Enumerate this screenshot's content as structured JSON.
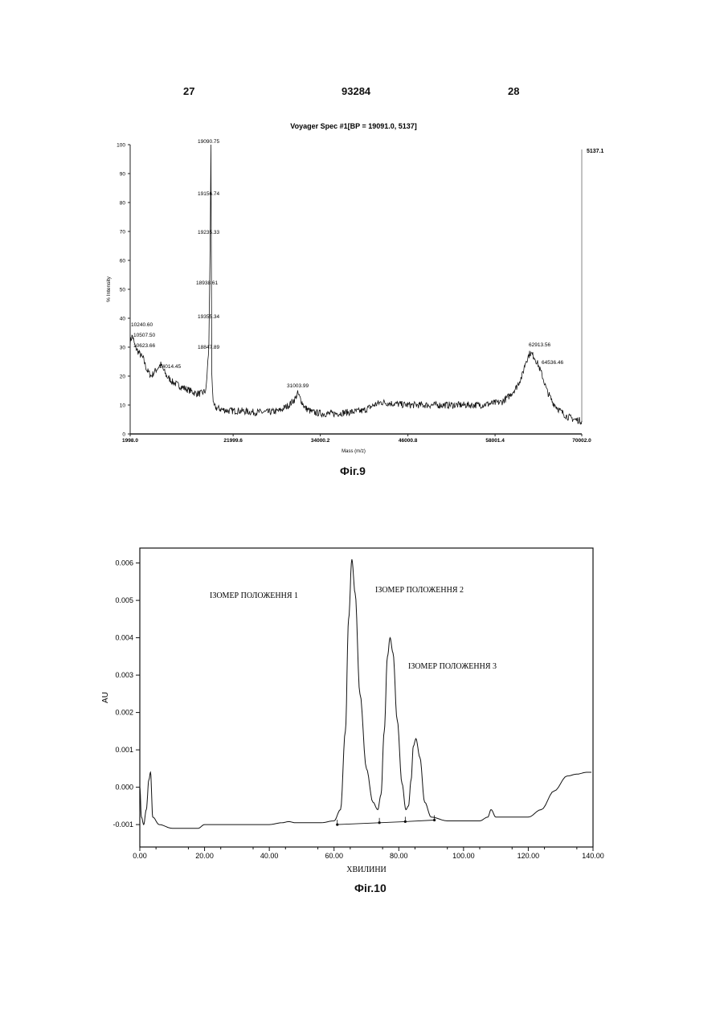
{
  "header": {
    "left_page": "27",
    "patent_number": "93284",
    "right_page": "28"
  },
  "figures": [
    {
      "caption": "Фіг.9"
    },
    {
      "caption": "Фіг.10"
    }
  ],
  "chart_data": [
    {
      "type": "line",
      "title": "Voyager Spec #1[BP = 19091.0, 5137]",
      "xlabel": "Mass (m/z)",
      "ylabel": "% Intensity",
      "x_ticks": [
        "1998.0",
        "21999.6",
        "34000.2",
        "46000.8",
        "58001.4",
        "70002.0"
      ],
      "y_ticks": [
        "0",
        "10",
        "20",
        "30",
        "40",
        "50",
        "60",
        "70",
        "80",
        "90",
        "100"
      ],
      "xlim": [
        7999.0,
        70002.0
      ],
      "ylim": [
        0,
        100
      ],
      "right_axis_label": "5137.1",
      "grid": false,
      "series": [
        {
          "x": [
            7999,
            8300,
            8700,
            9200,
            9800,
            10300,
            10900,
            11500,
            12200,
            13000,
            13800,
            14500,
            15300,
            16200,
            17000,
            17800,
            18400,
            18800,
            19000,
            19090,
            19200,
            19400,
            19800,
            20500,
            21500,
            23000,
            25000,
            27000,
            28500,
            29800,
            30600,
            31000,
            31400,
            32000,
            33000,
            34500,
            36000,
            38000,
            40000,
            41500,
            42500,
            44000,
            46000,
            48000,
            50000,
            52000,
            54000,
            56000,
            57500,
            59000,
            60000,
            61000,
            61800,
            62300,
            62900,
            63400,
            64000,
            64600,
            65200,
            66000,
            67000,
            68000,
            69000,
            70002
          ],
          "values": [
            32,
            34,
            30,
            28,
            26,
            22,
            20,
            22,
            24,
            20,
            18,
            17,
            16,
            15,
            14,
            14,
            15,
            30,
            70,
            100,
            22,
            10,
            9,
            8.5,
            8,
            8,
            7.5,
            7.5,
            8,
            10,
            12,
            14,
            12,
            9,
            7.5,
            7,
            7,
            7.5,
            8,
            10,
            11,
            10.5,
            10,
            10,
            10,
            10,
            10,
            10,
            10.5,
            11,
            13,
            16,
            20,
            25,
            28,
            27,
            24,
            20,
            15,
            11,
            8,
            6,
            5,
            4.5
          ]
        }
      ],
      "peak_labels": [
        {
          "x": 19090.75,
          "y": 100,
          "text": "19090.75"
        },
        {
          "x": 19156.74,
          "y": 87,
          "text": "19156.74"
        },
        {
          "x": 19235.33,
          "y": 70,
          "text": "19235.33"
        },
        {
          "x": 18938.61,
          "y": 52,
          "text": "18938.61"
        },
        {
          "x": 19355.34,
          "y": 39,
          "text": "19355.34"
        },
        {
          "x": 18847.89,
          "y": 29,
          "text": "18847.89"
        },
        {
          "x": 10240.6,
          "y": 37,
          "text": "10240.60"
        },
        {
          "x": 10507.5,
          "y": 34,
          "text": "10507.50"
        },
        {
          "x": 10623.66,
          "y": 30,
          "text": "10623.66"
        },
        {
          "x": 14014.45,
          "y": 22,
          "text": "14014.45"
        },
        {
          "x": 31003.99,
          "y": 15,
          "text": "31003.99"
        },
        {
          "x": 62913.56,
          "y": 30,
          "text": "62913.56"
        },
        {
          "x": 64536.46,
          "y": 24,
          "text": "64536.46"
        }
      ]
    },
    {
      "type": "line",
      "xlabel": "ХВИЛИНИ",
      "ylabel": "AU",
      "x_ticks": [
        "0.00",
        "20.00",
        "40.00",
        "60.00",
        "80.00",
        "100.00",
        "120.00",
        "140.00"
      ],
      "y_ticks": [
        "-0.001",
        "0.000",
        "0.001",
        "0.002",
        "0.003",
        "0.004",
        "0.005",
        "0.006"
      ],
      "xlim": [
        0,
        140
      ],
      "ylim": [
        -0.0016,
        0.0064
      ],
      "grid": false,
      "series": [
        {
          "x": [
            0,
            0.5,
            1.2,
            2.0,
            2.8,
            3.3,
            4.0,
            6,
            10,
            14,
            18,
            20,
            22,
            26,
            30,
            35,
            40,
            44,
            46,
            48,
            52,
            56,
            60,
            62,
            63.5,
            64.5,
            65.5,
            66.5,
            68,
            70,
            72,
            73.5,
            74.5,
            75.5,
            76.5,
            77.3,
            78.2,
            79.5,
            81,
            82.2,
            83,
            83.8,
            84.5,
            85.3,
            86.5,
            88,
            90,
            95,
            100,
            105,
            107.5,
            108.5,
            110,
            115,
            120,
            124,
            128,
            132,
            135,
            138,
            139.5
          ],
          "values": [
            0.0,
            -0.0008,
            -0.001,
            -0.0006,
            0.0002,
            0.0004,
            -0.0008,
            -0.001,
            -0.0011,
            -0.0011,
            -0.0011,
            -0.001,
            -0.001,
            -0.001,
            -0.001,
            -0.001,
            -0.001,
            -0.00095,
            -0.00092,
            -0.00095,
            -0.00095,
            -0.00095,
            -0.0009,
            -0.0006,
            0.0015,
            0.0045,
            0.0061,
            0.0052,
            0.0025,
            0.0005,
            -0.0004,
            -0.0006,
            -0.0002,
            0.0015,
            0.0035,
            0.004,
            0.0036,
            0.0018,
            0.0001,
            -0.0006,
            -0.0005,
            0.0002,
            0.0011,
            0.0013,
            0.0008,
            -0.0004,
            -0.0008,
            -0.0009,
            -0.0009,
            -0.0009,
            -0.0008,
            -0.0006,
            -0.0008,
            -0.0008,
            -0.0008,
            -0.0006,
            -0.0001,
            0.0003,
            0.00035,
            0.0004,
            0.0004
          ]
        },
        {
          "x": [
            61,
            74,
            82,
            91
          ],
          "values": [
            -0.001,
            -0.00095,
            -0.00092,
            -0.00088
          ]
        }
      ],
      "baseline_markers": [
        61,
        74,
        82,
        91
      ],
      "annotations": [
        "ІЗОМЕР ПОЛОЖЕННЯ 1",
        "ІЗОМЕР ПОЛОЖЕННЯ 2",
        "ІЗОМЕР ПОЛОЖЕННЯ 3"
      ]
    }
  ]
}
